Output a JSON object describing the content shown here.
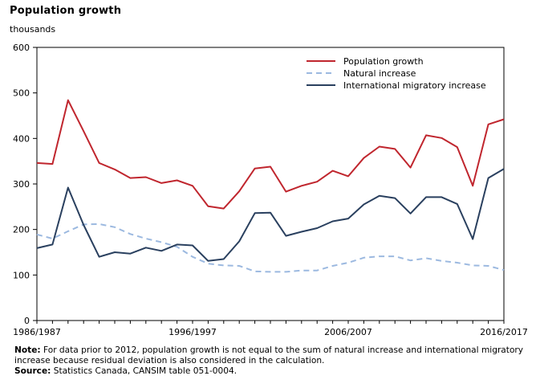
{
  "chart_data": {
    "type": "line",
    "title": "Population growth",
    "subtitle": "thousands",
    "ylim": [
      0,
      600
    ],
    "yticks": [
      0,
      100,
      200,
      300,
      400,
      500,
      600
    ],
    "xlabels": [
      "1986/1987",
      "1996/1997",
      "2006/2007",
      "2016/2017"
    ],
    "x": [
      "1986/1987",
      "1987/1988",
      "1988/1989",
      "1989/1990",
      "1990/1991",
      "1991/1992",
      "1992/1993",
      "1993/1994",
      "1994/1995",
      "1995/1996",
      "1996/1997",
      "1997/1998",
      "1998/1999",
      "1999/2000",
      "2000/2001",
      "2001/2002",
      "2002/2003",
      "2003/2004",
      "2004/2005",
      "2005/2006",
      "2006/2007",
      "2007/2008",
      "2008/2009",
      "2009/2010",
      "2010/2011",
      "2011/2012",
      "2012/2013",
      "2013/2014",
      "2014/2015",
      "2015/2016",
      "2016/2017"
    ],
    "series": [
      {
        "name": "Population growth",
        "color": "#c0262e",
        "dash": "solid",
        "values": [
          346,
          344,
          484,
          416,
          346,
          332,
          313,
          315,
          302,
          308,
          296,
          251,
          246,
          284,
          334,
          338,
          283,
          296,
          305,
          329,
          317,
          357,
          382,
          377,
          336,
          407,
          401,
          381,
          296,
          431,
          442
        ]
      },
      {
        "name": "Natural increase",
        "color": "#9cb9e0",
        "dash": "dashed",
        "values": [
          189,
          180,
          196,
          211,
          212,
          205,
          190,
          180,
          172,
          162,
          140,
          125,
          121,
          120,
          108,
          107,
          107,
          110,
          110,
          120,
          127,
          138,
          141,
          141,
          132,
          137,
          131,
          127,
          121,
          120,
          111
        ]
      },
      {
        "name": "International migratory increase",
        "color": "#2a405f",
        "dash": "solid",
        "values": [
          159,
          167,
          292,
          210,
          140,
          150,
          147,
          160,
          153,
          167,
          165,
          131,
          135,
          174,
          236,
          237,
          186,
          195,
          203,
          218,
          224,
          255,
          274,
          269,
          235,
          271,
          271,
          256,
          179,
          313,
          333
        ]
      }
    ],
    "legend_position": "top-right",
    "grid": false
  },
  "notes": {
    "note_label": "Note:",
    "note_text": " For data prior to 2012, population growth is not equal to the sum of natural increase and international migratory increase because residual deviation is also considered in the calculation.",
    "source_label": "Source:",
    "source_text": " Statistics Canada, CANSIM table 051-0004."
  }
}
